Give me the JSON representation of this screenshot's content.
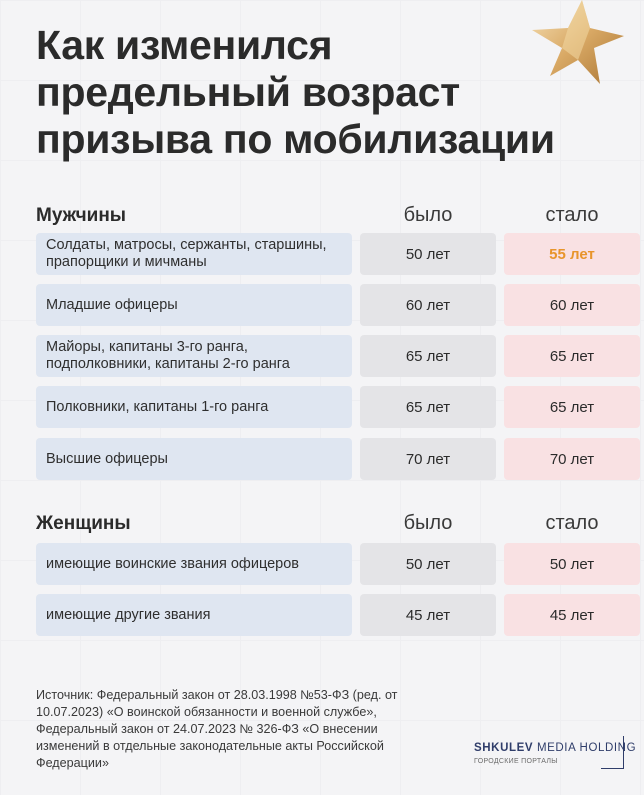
{
  "title_lines": [
    "Как изменился",
    "предельный возраст",
    "призыва по мобилизации"
  ],
  "sections": [
    {
      "name": "Мужчины",
      "col_was": "было",
      "col_now": "стало",
      "rows": [
        {
          "label": "Солдаты, матросы, сержанты, старшины, прапорщики и мичманы",
          "was": "50 лет",
          "now": "55 лет",
          "highlight": true
        },
        {
          "label": "Младшие офицеры",
          "was": "60 лет",
          "now": "60 лет",
          "highlight": false
        },
        {
          "label": "Майоры, капитаны 3-го ранга, подполковники, капитаны 2-го ранга",
          "was": "65 лет",
          "now": "65 лет",
          "highlight": false
        },
        {
          "label": "Полковники, капитаны 1-го ранга",
          "was": "65 лет",
          "now": "65 лет",
          "highlight": false
        },
        {
          "label": "Высшие офицеры",
          "was": "70 лет",
          "now": "70 лет",
          "highlight": false
        }
      ]
    },
    {
      "name": "Женщины",
      "col_was": "было",
      "col_now": "стало",
      "rows": [
        {
          "label": "имеющие воинские звания офицеров",
          "was": "50 лет",
          "now": "50 лет",
          "highlight": false
        },
        {
          "label": "имеющие другие звания",
          "was": "45 лет",
          "now": "45 лет",
          "highlight": false
        }
      ]
    }
  ],
  "source": "Источник: Федеральный закон от 28.03.1998 №53-ФЗ (ред. от 10.07.2023) «О воинской обязанности и военной службе», Федеральный закон от 24.07.2023 № 326-ФЗ «О внесении изменений в отдельные законодательные акты Российской Федерации»",
  "logo": {
    "brand_bold": "SHKULEV",
    "brand_thin": "MEDIA HOLDING",
    "sub": "ГОРОДСКИЕ ПОРТАЛЫ"
  },
  "colors": {
    "highlight": "#e8952b",
    "label_bg": "#dfe6f1",
    "was_bg": "#e4e4e7",
    "now_bg": "#f9e1e3"
  }
}
